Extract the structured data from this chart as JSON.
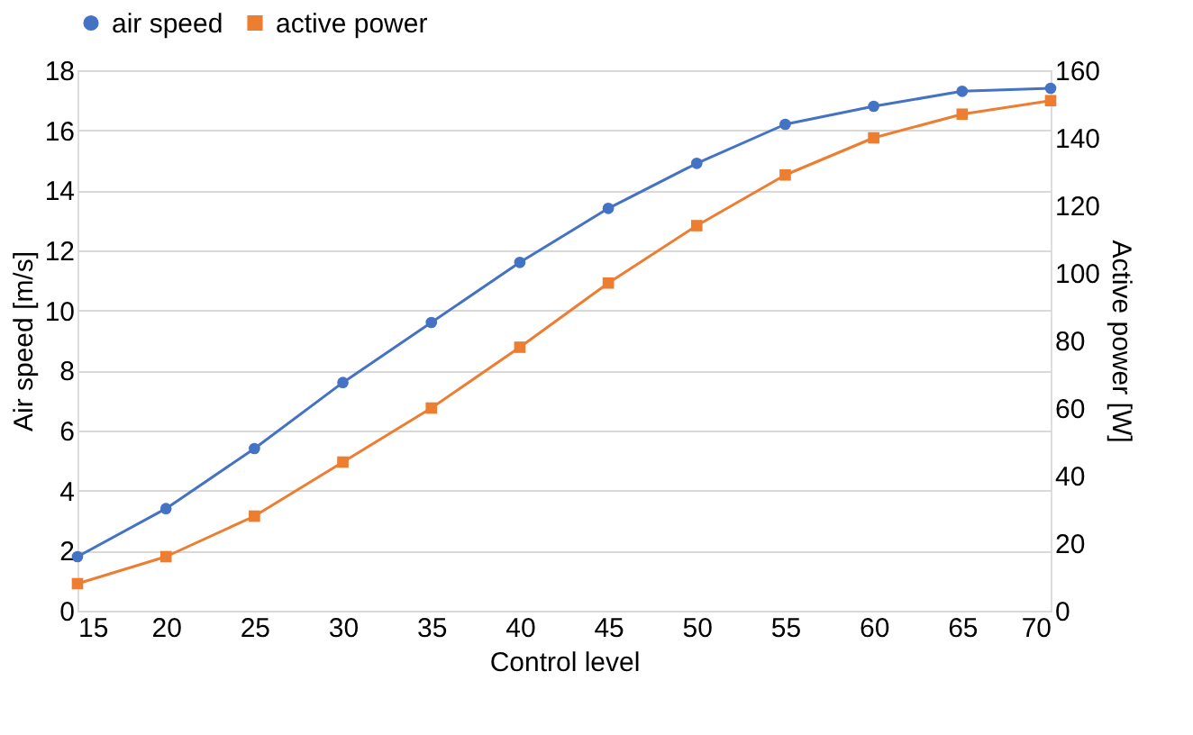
{
  "chart_data": {
    "type": "line",
    "xlabel": "Control level",
    "ylabel": "Air speed [m/s]",
    "y2label": "Active power [W]",
    "x": [
      15,
      20,
      25,
      30,
      35,
      40,
      45,
      50,
      55,
      60,
      65,
      70
    ],
    "series": [
      {
        "name": "air speed",
        "color": "#4472c4",
        "marker": "circle",
        "values": [
          1.8,
          3.4,
          5.4,
          7.6,
          9.6,
          11.6,
          13.4,
          14.9,
          16.2,
          16.8,
          17.3,
          17.4
        ]
      },
      {
        "name": "active power",
        "color": "#ed7d31",
        "marker": "square",
        "axis": "y2",
        "values": [
          8,
          16,
          28,
          44,
          60,
          78,
          97,
          114,
          129,
          140,
          147,
          151
        ]
      }
    ],
    "xlim": [
      15,
      70
    ],
    "xticks": [
      15,
      20,
      25,
      30,
      35,
      40,
      45,
      50,
      55,
      60,
      65,
      70
    ],
    "ylim": [
      0,
      18
    ],
    "yticks": [
      0,
      2,
      4,
      6,
      8,
      10,
      12,
      14,
      16,
      18
    ],
    "y2lim": [
      0,
      160
    ],
    "y2ticks": [
      0,
      20,
      40,
      60,
      80,
      100,
      120,
      140,
      160
    ],
    "grid": "y",
    "legend": "top"
  }
}
